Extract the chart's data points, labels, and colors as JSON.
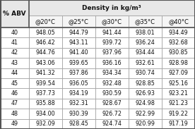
{
  "header_main": "Density in kg/m³",
  "col_header_0": "% ABV",
  "col_headers": [
    "@20°C",
    "@25°C",
    "@30°C",
    "@35°C",
    "@40°C"
  ],
  "rows": [
    [
      40,
      948.05,
      944.79,
      941.44,
      938.01,
      934.49
    ],
    [
      41,
      946.42,
      943.11,
      939.72,
      936.24,
      932.68
    ],
    [
      42,
      944.76,
      941.4,
      937.96,
      934.44,
      930.85
    ],
    [
      43,
      943.06,
      939.65,
      936.16,
      932.61,
      928.98
    ],
    [
      44,
      941.32,
      937.86,
      934.34,
      930.74,
      927.09
    ],
    [
      45,
      939.54,
      936.05,
      932.48,
      928.85,
      925.16
    ],
    [
      46,
      937.73,
      934.19,
      930.59,
      926.93,
      923.21
    ],
    [
      47,
      935.88,
      932.31,
      928.67,
      924.98,
      921.23
    ],
    [
      48,
      934.0,
      930.39,
      926.72,
      922.99,
      919.22
    ],
    [
      49,
      932.09,
      928.45,
      924.74,
      920.99,
      917.19
    ]
  ],
  "bg_header": "#e8e8e8",
  "bg_subheader": "#f5f5f5",
  "bg_body": "#ffffff",
  "border_color": "#999999",
  "outer_border_color": "#555555",
  "text_color": "#111111",
  "font_size_header": 6.5,
  "font_size_subheader": 6.0,
  "font_size_body": 5.8,
  "figsize": [
    2.76,
    1.83
  ],
  "dpi": 100
}
